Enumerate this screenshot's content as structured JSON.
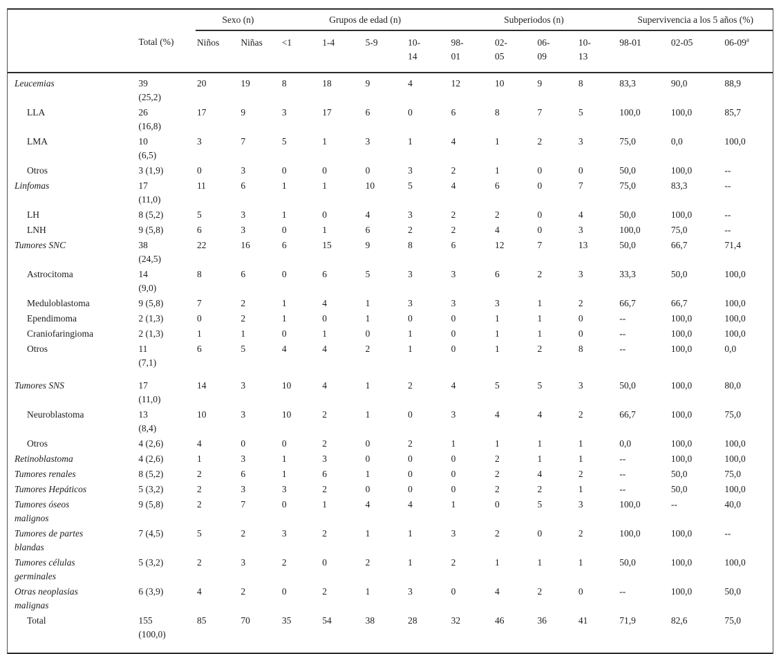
{
  "table": {
    "columns": {
      "row_label": "",
      "total": "Total (%)",
      "sexo": {
        "label": "Sexo (n)",
        "cols": [
          "Niños",
          "Niñas"
        ]
      },
      "edad": {
        "label": "Grupos de edad (n)",
        "cols": [
          "<1",
          "1-4",
          "5-9",
          "10-\n14"
        ]
      },
      "subperiodos": {
        "label": "Subperiodos (n)",
        "cols": [
          "98-\n01",
          "02-\n05",
          "06-\n09",
          "10-\n13"
        ]
      },
      "supervivencia": {
        "label": "Supervivencia a los 5 años (%)",
        "cols": [
          "98-01",
          "02-05",
          "06-09"
        ],
        "footnote_marker": "a"
      }
    },
    "rows": [
      {
        "label": "Leucemias",
        "italic": true,
        "indent": false,
        "gap": false,
        "cells": [
          "39\n(25,2)",
          "20",
          "19",
          "8",
          "18",
          "9",
          "4",
          "12",
          "10",
          "9",
          "8",
          "83,3",
          "90,0",
          "88,9"
        ]
      },
      {
        "label": "LLA",
        "italic": false,
        "indent": true,
        "gap": false,
        "cells": [
          "26\n(16,8)",
          "17",
          "9",
          "3",
          "17",
          "6",
          "0",
          "6",
          "8",
          "7",
          "5",
          "100,0",
          "100,0",
          "85,7"
        ]
      },
      {
        "label": "LMA",
        "italic": false,
        "indent": true,
        "gap": false,
        "cells": [
          "10\n(6,5)",
          "3",
          "7",
          "5",
          "1",
          "3",
          "1",
          "4",
          "1",
          "2",
          "3",
          "75,0",
          "0,0",
          "100,0"
        ]
      },
      {
        "label": "Otros",
        "italic": false,
        "indent": true,
        "gap": false,
        "cells": [
          "3 (1,9)",
          "0",
          "3",
          "0",
          "0",
          "0",
          "3",
          "2",
          "1",
          "0",
          "0",
          "50,0",
          "100,0",
          "--"
        ]
      },
      {
        "label": "Linfomas",
        "italic": true,
        "indent": false,
        "gap": false,
        "cells": [
          "17\n(11,0)",
          "11",
          "6",
          "1",
          "1",
          "10",
          "5",
          "4",
          "6",
          "0",
          "7",
          "75,0",
          "83,3",
          "--"
        ]
      },
      {
        "label": "LH",
        "italic": false,
        "indent": true,
        "gap": false,
        "cells": [
          "8 (5,2)",
          "5",
          "3",
          "1",
          "0",
          "4",
          "3",
          "2",
          "2",
          "0",
          "4",
          "50,0",
          "100,0",
          "--"
        ]
      },
      {
        "label": "LNH",
        "italic": false,
        "indent": true,
        "gap": false,
        "cells": [
          "9 (5,8)",
          "6",
          "3",
          "0",
          "1",
          "6",
          "2",
          "2",
          "4",
          "0",
          "3",
          "100,0",
          "75,0",
          "--"
        ]
      },
      {
        "label": "Tumores SNC",
        "italic": true,
        "indent": false,
        "gap": false,
        "cells": [
          "38\n(24,5)",
          "22",
          "16",
          "6",
          "15",
          "9",
          "8",
          "6",
          "12",
          "7",
          "13",
          "50,0",
          "66,7",
          "71,4"
        ]
      },
      {
        "label": "Astrocitoma",
        "italic": false,
        "indent": true,
        "gap": false,
        "cells": [
          "14\n(9,0)",
          "8",
          "6",
          "0",
          "6",
          "5",
          "3",
          "3",
          "6",
          "2",
          "3",
          "33,3",
          "50,0",
          "100,0"
        ]
      },
      {
        "label": "Meduloblastoma",
        "italic": false,
        "indent": true,
        "gap": false,
        "cells": [
          "9 (5,8)",
          "7",
          "2",
          "1",
          "4",
          "1",
          "3",
          "3",
          "3",
          "1",
          "2",
          "66,7",
          "66,7",
          "100,0"
        ]
      },
      {
        "label": "Ependimoma",
        "italic": false,
        "indent": true,
        "gap": false,
        "cells": [
          "2 (1,3)",
          "0",
          "2",
          "1",
          "0",
          "1",
          "0",
          "0",
          "1",
          "1",
          "0",
          "--",
          "100,0",
          "100,0"
        ]
      },
      {
        "label": "Craniofaringioma",
        "italic": false,
        "indent": true,
        "gap": false,
        "cells": [
          "2 (1,3)",
          "1",
          "1",
          "0",
          "1",
          "0",
          "1",
          "0",
          "1",
          "1",
          "0",
          "--",
          "100,0",
          "100,0"
        ]
      },
      {
        "label": "Otros",
        "italic": false,
        "indent": true,
        "gap": false,
        "cells": [
          "11\n(7,1)",
          "6",
          "5",
          "4",
          "4",
          "2",
          "1",
          "0",
          "1",
          "2",
          "8",
          "--",
          "100,0",
          "0,0"
        ]
      },
      {
        "label": "Tumores SNS",
        "italic": true,
        "indent": false,
        "gap": true,
        "cells": [
          "17\n(11,0)",
          "14",
          "3",
          "10",
          "4",
          "1",
          "2",
          "4",
          "5",
          "5",
          "3",
          "50,0",
          "100,0",
          "80,0"
        ]
      },
      {
        "label": "Neuroblastoma",
        "italic": false,
        "indent": true,
        "gap": false,
        "cells": [
          "13\n(8,4)",
          "10",
          "3",
          "10",
          "2",
          "1",
          "0",
          "3",
          "4",
          "4",
          "2",
          "66,7",
          "100,0",
          "75,0"
        ]
      },
      {
        "label": "Otros",
        "italic": false,
        "indent": true,
        "gap": false,
        "cells": [
          "4 (2,6)",
          "4",
          "0",
          "0",
          "2",
          "0",
          "2",
          "1",
          "1",
          "1",
          "1",
          "0,0",
          "100,0",
          "100,0"
        ]
      },
      {
        "label": "Retinoblastoma",
        "italic": true,
        "indent": false,
        "gap": false,
        "cells": [
          "4 (2,6)",
          "1",
          "3",
          "1",
          "3",
          "0",
          "0",
          "0",
          "2",
          "1",
          "1",
          "--",
          "100,0",
          "100,0"
        ]
      },
      {
        "label": "Tumores renales",
        "italic": true,
        "indent": false,
        "gap": false,
        "cells": [
          "8 (5,2)",
          "2",
          "6",
          "1",
          "6",
          "1",
          "0",
          "0",
          "2",
          "4",
          "2",
          "--",
          "50,0",
          "75,0"
        ]
      },
      {
        "label": "Tumores Hepáticos",
        "italic": true,
        "indent": false,
        "gap": false,
        "cells": [
          "5 (3,2)",
          "2",
          "3",
          "3",
          "2",
          "0",
          "0",
          "0",
          "2",
          "2",
          "1",
          "--",
          "50,0",
          "100,0"
        ]
      },
      {
        "label": "Tumores óseos\nmalignos",
        "italic": true,
        "indent": false,
        "gap": false,
        "cells": [
          "9 (5,8)",
          "2",
          "7",
          "0",
          "1",
          "4",
          "4",
          "1",
          "0",
          "5",
          "3",
          "100,0",
          "--",
          "40,0"
        ]
      },
      {
        "label": "Tumores de partes\nblandas",
        "italic": true,
        "indent": false,
        "gap": false,
        "cells": [
          "7 (4,5)",
          "5",
          "2",
          "3",
          "2",
          "1",
          "1",
          "3",
          "2",
          "0",
          "2",
          "100,0",
          "100,0",
          "--"
        ]
      },
      {
        "label": "Tumores células\ngerminales",
        "italic": true,
        "indent": false,
        "gap": false,
        "cells": [
          "5 (3,2)",
          "2",
          "3",
          "2",
          "0",
          "2",
          "1",
          "2",
          "1",
          "1",
          "1",
          "50,0",
          "100,0",
          "100,0"
        ]
      },
      {
        "label": "Otras neoplasias\nmalignas",
        "italic": true,
        "indent": false,
        "gap": false,
        "cells": [
          "6 (3,9)",
          "4",
          "2",
          "0",
          "2",
          "1",
          "3",
          "0",
          "4",
          "2",
          "0",
          "--",
          "100,0",
          "50,0"
        ]
      },
      {
        "label": "Total",
        "italic": false,
        "indent": true,
        "gap": false,
        "cells": [
          "155\n(100,0)",
          "85",
          "70",
          "35",
          "54",
          "38",
          "28",
          "32",
          "46",
          "36",
          "41",
          "71,9",
          "82,6",
          "75,0"
        ]
      }
    ]
  }
}
